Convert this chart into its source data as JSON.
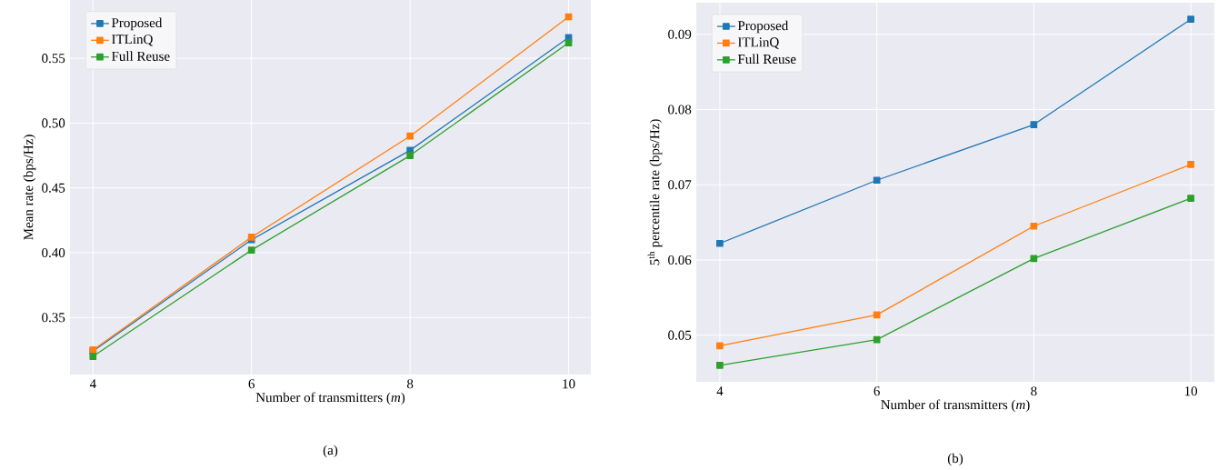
{
  "chart_data": [
    {
      "type": "line",
      "xlabel": "Number of transmitters (*m*)",
      "ylabel": "Mean rate (bps/Hz)",
      "annotations": [
        "(a)"
      ],
      "x": [
        4,
        6,
        8,
        10
      ],
      "series": [
        {
          "name": "Proposed",
          "color": "#1f77b4",
          "values": [
            0.324,
            0.41,
            0.479,
            0.566
          ]
        },
        {
          "name": "ITLinQ",
          "color": "#ff7f0e",
          "values": [
            0.325,
            0.412,
            0.49,
            0.582
          ]
        },
        {
          "name": "Full Reuse",
          "color": "#2ca02c",
          "values": [
            0.32,
            0.402,
            0.475,
            0.562
          ]
        }
      ],
      "xlim": [
        3.71,
        10.28
      ],
      "ylim": [
        0.306,
        0.595
      ],
      "xticks": [
        4,
        6,
        8,
        10
      ],
      "yticks": [
        0.35,
        {
          "value": 0.4,
          "label": "0.40"
        },
        0.45,
        {
          "value": 0.5,
          "label": "0.50"
        },
        0.55
      ],
      "grid": true,
      "legend": "top left",
      "marker": "square",
      "line_style": "solid"
    },
    {
      "type": "line",
      "xlabel": "Number of transmitters (*m*)",
      "ylabel": "5$^{th}$ percentile rate (bps/Hz)",
      "annotations": [
        "(b)"
      ],
      "x": [
        4,
        6,
        8,
        10
      ],
      "series": [
        {
          "name": "Proposed",
          "color": "#1f77b4",
          "values": [
            0.0622,
            0.0706,
            0.078,
            0.092
          ]
        },
        {
          "name": "ITLinQ",
          "color": "#ff7f0e",
          "values": [
            0.0486,
            0.0527,
            0.0645,
            0.0727
          ]
        },
        {
          "name": "Full Reuse",
          "color": "#2ca02c",
          "values": [
            0.046,
            0.0494,
            0.0602,
            0.0682
          ]
        }
      ],
      "xlim": [
        3.7,
        10.3
      ],
      "ylim": [
        0.0438,
        0.0942
      ],
      "xticks": [
        4,
        6,
        8,
        10
      ],
      "yticks": [
        0.05,
        0.06,
        0.07,
        0.08,
        0.09
      ],
      "grid": true,
      "legend": "top left",
      "marker": "square",
      "line_style": "solid"
    }
  ]
}
